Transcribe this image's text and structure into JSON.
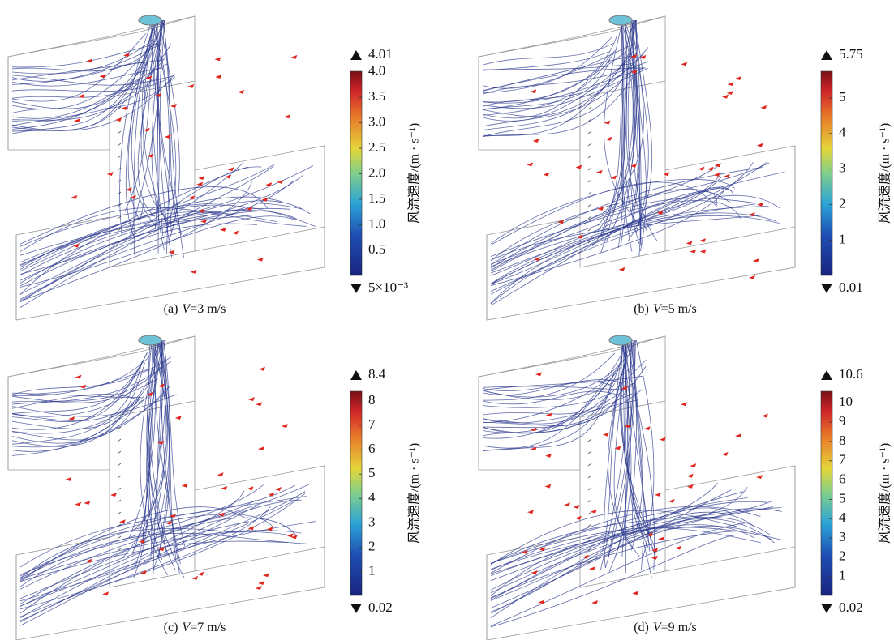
{
  "panels": [
    {
      "caption": {
        "label": "(a)",
        "var": "V",
        "text": "=3 m/s"
      },
      "colorbar": {
        "title": "风流速度/(m · s⁻¹)",
        "max": 4.01,
        "min": {
          "value": 0.005,
          "label": "5×10⁻³"
        },
        "ticks": [
          0.5,
          {
            "value": 1,
            "label": "1.0"
          },
          1.5,
          {
            "value": 2,
            "label": "2.0"
          },
          2.5,
          {
            "value": 3,
            "label": "3.0"
          },
          3.5,
          {
            "value": 4,
            "label": "4.0"
          }
        ]
      }
    },
    {
      "caption": {
        "label": "(b)",
        "var": "V",
        "text": "=5 m/s"
      },
      "colorbar": {
        "title": "风流速度/(m · s⁻¹)",
        "max": 5.75,
        "min": 0.01,
        "ticks": [
          1,
          2,
          3,
          4,
          5
        ]
      }
    },
    {
      "caption": {
        "label": "(c)",
        "var": "V",
        "text": "=7 m/s"
      },
      "colorbar": {
        "title": "风流速度/(m · s⁻¹)",
        "max": 8.4,
        "min": 0.02,
        "ticks": [
          1,
          2,
          3,
          4,
          5,
          6,
          7,
          8
        ]
      }
    },
    {
      "caption": {
        "label": "(d)",
        "var": "V",
        "text": "=9 m/s"
      },
      "colorbar": {
        "title": "风流速度/(m · s⁻¹)",
        "max": 10.6,
        "min": 0.02,
        "ticks": [
          1,
          2,
          3,
          4,
          5,
          6,
          7,
          8,
          9,
          10
        ]
      }
    }
  ]
}
